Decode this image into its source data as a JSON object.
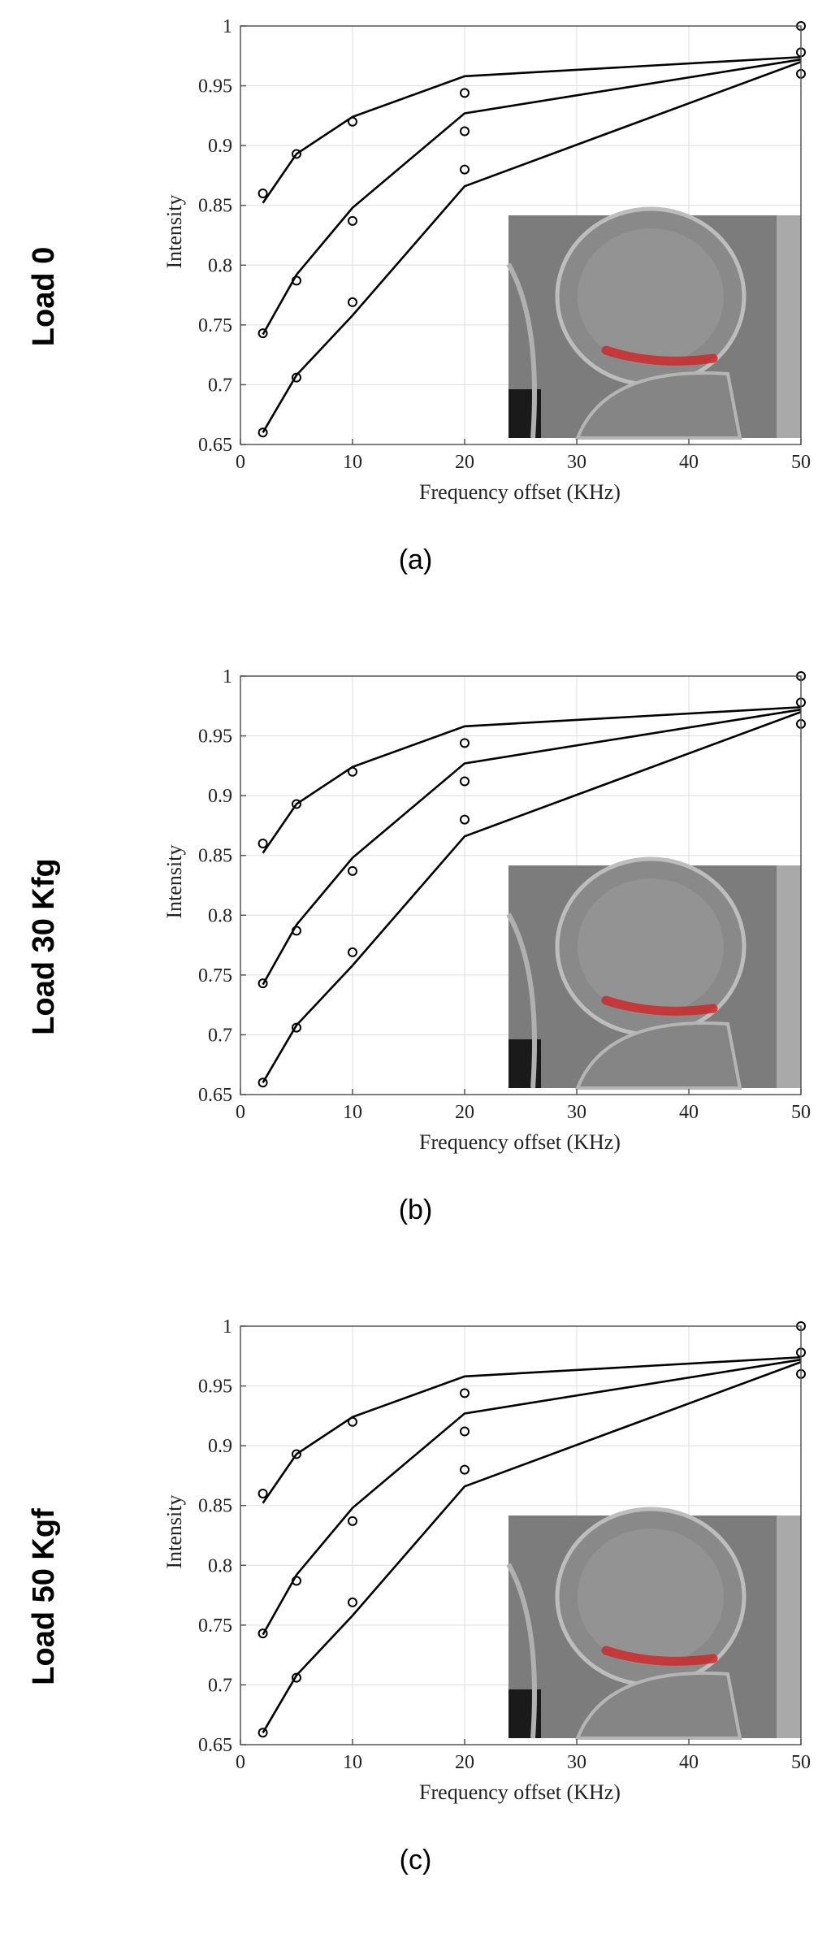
{
  "chart_data": [
    {
      "type": "line",
      "row_label": "Load 0",
      "caption": "(a)",
      "xlabel": "Frequency offset (KHz)",
      "ylabel": "Intensity",
      "xlim": [
        0,
        50
      ],
      "ylim": [
        0.65,
        1
      ],
      "xticks": [
        "0",
        "10",
        "20",
        "30",
        "40",
        "50"
      ],
      "yticks": [
        "0.65",
        "0.7",
        "0.75",
        "0.8",
        "0.85",
        "0.9",
        "0.95",
        "1"
      ],
      "grid": true,
      "inset": "knee-mri-image",
      "series": [
        {
          "x": [
            2,
            5,
            10,
            20,
            50
          ],
          "fit": [
            0.852,
            0.893,
            0.924,
            0.958,
            0.974
          ],
          "points": [
            0.86,
            0.893,
            0.92,
            0.944,
            1.0
          ]
        },
        {
          "x": [
            2,
            5,
            10,
            20,
            50
          ],
          "fit": [
            0.742,
            0.792,
            0.848,
            0.927,
            0.972
          ],
          "points": [
            0.743,
            0.787,
            0.837,
            0.912,
            0.978
          ]
        },
        {
          "x": [
            2,
            5,
            10,
            20,
            50
          ],
          "fit": [
            0.66,
            0.708,
            0.758,
            0.866,
            0.97
          ],
          "points": [
            0.66,
            0.706,
            0.769,
            0.88,
            0.96
          ]
        }
      ]
    },
    {
      "type": "line",
      "row_label": "Load 30 Kfg",
      "caption": "(b)",
      "xlabel": "Frequency offset (KHz)",
      "ylabel": "Intensity",
      "xlim": [
        0,
        50
      ],
      "ylim": [
        0.65,
        1
      ],
      "xticks": [
        "0",
        "10",
        "20",
        "30",
        "40",
        "50"
      ],
      "yticks": [
        "0.65",
        "0.7",
        "0.75",
        "0.8",
        "0.85",
        "0.9",
        "0.95",
        "1"
      ],
      "grid": true,
      "inset": "knee-mri-image",
      "series": [
        {
          "x": [
            2,
            5,
            10,
            20,
            50
          ],
          "fit": [
            0.852,
            0.893,
            0.924,
            0.958,
            0.974
          ],
          "points": [
            0.86,
            0.893,
            0.92,
            0.944,
            1.0
          ]
        },
        {
          "x": [
            2,
            5,
            10,
            20,
            50
          ],
          "fit": [
            0.742,
            0.792,
            0.848,
            0.927,
            0.972
          ],
          "points": [
            0.743,
            0.787,
            0.837,
            0.912,
            0.978
          ]
        },
        {
          "x": [
            2,
            5,
            10,
            20,
            50
          ],
          "fit": [
            0.66,
            0.708,
            0.758,
            0.866,
            0.97
          ],
          "points": [
            0.66,
            0.706,
            0.769,
            0.88,
            0.96
          ]
        }
      ]
    },
    {
      "type": "line",
      "row_label": "Load 50 Kgf",
      "caption": "(c)",
      "xlabel": "Frequency offset (KHz)",
      "ylabel": "Intensity",
      "xlim": [
        0,
        50
      ],
      "ylim": [
        0.65,
        1
      ],
      "xticks": [
        "0",
        "10",
        "20",
        "30",
        "40",
        "50"
      ],
      "yticks": [
        "0.65",
        "0.7",
        "0.75",
        "0.8",
        "0.85",
        "0.9",
        "0.95",
        "1"
      ],
      "grid": true,
      "inset": "knee-mri-image",
      "series": [
        {
          "x": [
            2,
            5,
            10,
            20,
            50
          ],
          "fit": [
            0.852,
            0.893,
            0.924,
            0.958,
            0.974
          ],
          "points": [
            0.86,
            0.893,
            0.92,
            0.944,
            1.0
          ]
        },
        {
          "x": [
            2,
            5,
            10,
            20,
            50
          ],
          "fit": [
            0.742,
            0.792,
            0.848,
            0.927,
            0.972
          ],
          "points": [
            0.743,
            0.787,
            0.837,
            0.912,
            0.978
          ]
        },
        {
          "x": [
            2,
            5,
            10,
            20,
            50
          ],
          "fit": [
            0.66,
            0.708,
            0.758,
            0.866,
            0.97
          ],
          "points": [
            0.66,
            0.706,
            0.769,
            0.88,
            0.96
          ]
        }
      ]
    }
  ],
  "colors": {
    "line": "#000000",
    "grid": "#dddddd",
    "axis": "#555555",
    "mri_overlay": "#cc2a2a"
  }
}
